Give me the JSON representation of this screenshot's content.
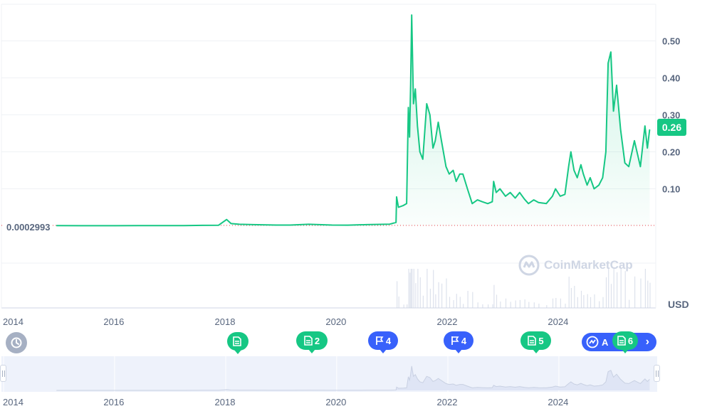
{
  "chart_data": {
    "type": "area",
    "currency": "USD",
    "yticks": [
      "0.10",
      "0.20",
      "0.30",
      "0.40",
      "0.50"
    ],
    "xticks": [
      "2014",
      "2016",
      "2018",
      "2020",
      "2022",
      "2024"
    ],
    "ylim": [
      0,
      0.6
    ],
    "start_price_label": "0.0002993",
    "current_price_label": "0.26",
    "series": [
      {
        "values": [
          [
            "2014-12-15",
            0.0003
          ],
          [
            "2015-06-01",
            0.0002
          ],
          [
            "2016-01-01",
            0.0002
          ],
          [
            "2016-06-01",
            0.0003
          ],
          [
            "2017-01-01",
            0.0003
          ],
          [
            "2017-04-01",
            0.0006
          ],
          [
            "2017-08-01",
            0.0012
          ],
          [
            "2017-11-15",
            0.0015
          ],
          [
            "2018-01-07",
            0.017
          ],
          [
            "2018-02-05",
            0.006
          ],
          [
            "2018-04-01",
            0.004
          ],
          [
            "2018-07-01",
            0.003
          ],
          [
            "2018-12-01",
            0.002
          ],
          [
            "2019-03-01",
            0.002
          ],
          [
            "2019-07-01",
            0.004
          ],
          [
            "2019-12-01",
            0.002
          ],
          [
            "2020-03-15",
            0.0017
          ],
          [
            "2020-07-15",
            0.003
          ],
          [
            "2020-12-15",
            0.0045
          ],
          [
            "2021-01-25",
            0.009
          ],
          [
            "2021-01-29",
            0.078
          ],
          [
            "2021-02-10",
            0.05
          ],
          [
            "2021-03-15",
            0.055
          ],
          [
            "2021-04-05",
            0.06
          ],
          [
            "2021-04-16",
            0.32
          ],
          [
            "2021-04-24",
            0.24
          ],
          [
            "2021-05-01",
            0.38
          ],
          [
            "2021-05-08",
            0.57
          ],
          [
            "2021-05-20",
            0.33
          ],
          [
            "2021-06-01",
            0.37
          ],
          [
            "2021-06-15",
            0.27
          ],
          [
            "2021-07-01",
            0.2
          ],
          [
            "2021-07-20",
            0.18
          ],
          [
            "2021-08-15",
            0.33
          ],
          [
            "2021-09-05",
            0.3
          ],
          [
            "2021-09-25",
            0.21
          ],
          [
            "2021-10-10",
            0.23
          ],
          [
            "2021-10-30",
            0.28
          ],
          [
            "2021-11-20",
            0.23
          ],
          [
            "2021-12-20",
            0.16
          ],
          [
            "2022-01-10",
            0.14
          ],
          [
            "2022-02-05",
            0.15
          ],
          [
            "2022-02-25",
            0.12
          ],
          [
            "2022-03-20",
            0.14
          ],
          [
            "2022-04-10",
            0.14
          ],
          [
            "2022-05-10",
            0.1
          ],
          [
            "2022-06-10",
            0.06
          ],
          [
            "2022-07-15",
            0.07
          ],
          [
            "2022-08-15",
            0.065
          ],
          [
            "2022-09-20",
            0.06
          ],
          [
            "2022-10-20",
            0.065
          ],
          [
            "2022-10-29",
            0.12
          ],
          [
            "2022-11-15",
            0.09
          ],
          [
            "2022-12-10",
            0.1
          ],
          [
            "2023-01-15",
            0.08
          ],
          [
            "2023-02-15",
            0.09
          ],
          [
            "2023-03-20",
            0.075
          ],
          [
            "2023-04-18",
            0.09
          ],
          [
            "2023-05-20",
            0.072
          ],
          [
            "2023-06-15",
            0.06
          ],
          [
            "2023-07-20",
            0.07
          ],
          [
            "2023-08-20",
            0.063
          ],
          [
            "2023-10-10",
            0.06
          ],
          [
            "2023-11-20",
            0.08
          ],
          [
            "2023-12-10",
            0.1
          ],
          [
            "2024-01-10",
            0.08
          ],
          [
            "2024-02-10",
            0.085
          ],
          [
            "2024-03-05",
            0.16
          ],
          [
            "2024-03-20",
            0.2
          ],
          [
            "2024-04-10",
            0.15
          ],
          [
            "2024-05-01",
            0.13
          ],
          [
            "2024-05-25",
            0.165
          ],
          [
            "2024-06-10",
            0.14
          ],
          [
            "2024-07-05",
            0.11
          ],
          [
            "2024-07-25",
            0.13
          ],
          [
            "2024-08-20",
            0.1
          ],
          [
            "2024-09-20",
            0.11
          ],
          [
            "2024-10-15",
            0.13
          ],
          [
            "2024-11-05",
            0.2
          ],
          [
            "2024-11-20",
            0.44
          ],
          [
            "2024-12-08",
            0.47
          ],
          [
            "2024-12-25",
            0.31
          ],
          [
            "2025-01-15",
            0.38
          ],
          [
            "2025-02-10",
            0.26
          ],
          [
            "2025-03-10",
            0.17
          ],
          [
            "2025-04-05",
            0.16
          ],
          [
            "2025-05-12",
            0.23
          ],
          [
            "2025-06-20",
            0.16
          ],
          [
            "2025-07-20",
            0.27
          ],
          [
            "2025-08-05",
            0.21
          ],
          [
            "2025-08-20",
            0.26
          ]
        ]
      }
    ],
    "grid": true,
    "legend": "none"
  },
  "events": [
    {
      "label": "",
      "kind": "document"
    },
    {
      "label": "2",
      "kind": "document"
    },
    {
      "label": "4",
      "kind": "flag"
    },
    {
      "label": "4",
      "kind": "flag"
    },
    {
      "label": "5",
      "kind": "document"
    },
    {
      "label": "6",
      "kind": "document"
    }
  ],
  "all_button_label": "A",
  "watermark": "CoinMarketCap",
  "colors": {
    "line": "#16c784",
    "grid": "#eff2f5",
    "navigator": "#eef2fb",
    "blue": "#3861fb",
    "baseline": "#ea3943"
  }
}
